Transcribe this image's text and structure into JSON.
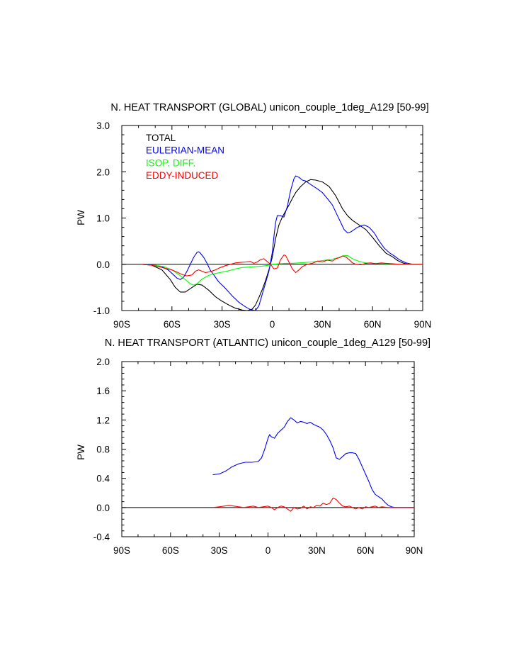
{
  "chart_data": [
    {
      "type": "line",
      "title": "N. HEAT TRANSPORT (GLOBAL) unicon_couple_1deg_A129 [50-99]",
      "xlabel": "",
      "ylabel": "PW",
      "xlim": [
        -90,
        90
      ],
      "ylim": [
        -1.0,
        3.0
      ],
      "xticks": [
        -90,
        -60,
        -30,
        0,
        30,
        60,
        90
      ],
      "xtick_labels": [
        "90S",
        "60S",
        "30S",
        "0",
        "30N",
        "60N",
        "90N"
      ],
      "yticks": [
        -1.0,
        0.0,
        1.0,
        2.0,
        3.0
      ],
      "ytick_labels": [
        "-1.0",
        "0.0",
        "1.0",
        "2.0",
        "3.0"
      ],
      "zero_line": true,
      "legend_position": "top-left",
      "series": [
        {
          "name": "TOTAL",
          "color": "#000000",
          "x": [
            -78,
            -72,
            -66,
            -61,
            -58,
            -55,
            -52,
            -48,
            -45,
            -42,
            -38,
            -34,
            -30,
            -26,
            -22,
            -18,
            -15,
            -12,
            -10,
            -8,
            -6,
            -4,
            -2,
            0,
            2,
            4,
            6,
            8,
            10,
            12,
            14,
            17,
            20,
            23,
            26,
            30,
            34,
            38,
            42,
            45,
            48,
            52,
            56,
            60,
            64,
            68,
            72,
            75,
            78,
            81,
            84,
            88,
            90
          ],
          "y": [
            0.0,
            -0.02,
            -0.12,
            -0.33,
            -0.5,
            -0.6,
            -0.6,
            -0.5,
            -0.43,
            -0.45,
            -0.56,
            -0.7,
            -0.8,
            -0.88,
            -0.95,
            -0.99,
            -1.0,
            -0.97,
            -0.88,
            -0.72,
            -0.55,
            -0.35,
            -0.12,
            0.15,
            0.55,
            0.85,
            1.02,
            1.15,
            1.28,
            1.42,
            1.55,
            1.68,
            1.78,
            1.83,
            1.82,
            1.78,
            1.68,
            1.48,
            1.2,
            1.05,
            0.95,
            0.85,
            0.75,
            0.58,
            0.4,
            0.24,
            0.16,
            0.08,
            0.03,
            0.0,
            0.0,
            0.0,
            0.0
          ]
        },
        {
          "name": "EULERIAN-MEAN",
          "color": "#0000ff",
          "x": [
            -78,
            -72,
            -66,
            -62,
            -59,
            -57,
            -55,
            -53,
            -51,
            -49,
            -47,
            -45,
            -44,
            -43,
            -41,
            -39,
            -37,
            -35,
            -32,
            -28,
            -24,
            -20,
            -16,
            -13,
            -10,
            -8,
            -6,
            -4,
            -2,
            0,
            1,
            2,
            3,
            5,
            7,
            9,
            11,
            13,
            14,
            16,
            18,
            20,
            22,
            24,
            27,
            30,
            33,
            36,
            39,
            41,
            43,
            45,
            47,
            49,
            51,
            53,
            55,
            58,
            61,
            64,
            67,
            70,
            73,
            76,
            80,
            84,
            88,
            90
          ],
          "y": [
            0.0,
            -0.01,
            -0.05,
            -0.13,
            -0.23,
            -0.3,
            -0.33,
            -0.28,
            -0.15,
            0.0,
            0.15,
            0.26,
            0.27,
            0.24,
            0.15,
            0.02,
            -0.13,
            -0.23,
            -0.38,
            -0.52,
            -0.68,
            -0.82,
            -0.92,
            -0.98,
            -1.0,
            -0.9,
            -0.65,
            -0.4,
            -0.15,
            0.25,
            0.6,
            0.9,
            1.05,
            1.05,
            1.02,
            1.25,
            1.6,
            1.85,
            1.91,
            1.88,
            1.82,
            1.8,
            1.75,
            1.7,
            1.63,
            1.55,
            1.42,
            1.28,
            1.05,
            0.9,
            0.75,
            0.68,
            0.7,
            0.75,
            0.8,
            0.83,
            0.85,
            0.8,
            0.68,
            0.5,
            0.35,
            0.25,
            0.18,
            0.1,
            0.03,
            0.0,
            0.0,
            0.0
          ]
        },
        {
          "name": "ISOP. DIFF.",
          "color": "#00ff00",
          "x": [
            -78,
            -70,
            -65,
            -60,
            -56,
            -52,
            -49,
            -47,
            -45,
            -42,
            -38,
            -34,
            -30,
            -26,
            -22,
            -18,
            -14,
            -10,
            -6,
            -2,
            0,
            4,
            8,
            12,
            16,
            20,
            24,
            28,
            32,
            36,
            40,
            43,
            45,
            48,
            52,
            56,
            60,
            64,
            68,
            72,
            76,
            80,
            84,
            88,
            90
          ],
          "y": [
            0.0,
            -0.02,
            -0.05,
            -0.12,
            -0.22,
            -0.33,
            -0.42,
            -0.45,
            -0.42,
            -0.32,
            -0.24,
            -0.2,
            -0.17,
            -0.14,
            -0.1,
            -0.07,
            -0.06,
            -0.05,
            -0.04,
            -0.02,
            0.0,
            0.01,
            0.02,
            0.02,
            0.03,
            0.04,
            0.05,
            0.07,
            0.09,
            0.11,
            0.15,
            0.19,
            0.19,
            0.12,
            0.06,
            0.03,
            0.02,
            0.02,
            0.01,
            0.01,
            0.0,
            0.0,
            0.0,
            0.0,
            0.0
          ]
        },
        {
          "name": "EDDY-INDUCED",
          "color": "#ff0000",
          "x": [
            -78,
            -72,
            -68,
            -64,
            -60,
            -57,
            -54,
            -51,
            -48,
            -46,
            -44,
            -42,
            -40,
            -37,
            -34,
            -31,
            -28,
            -25,
            -22,
            -19,
            -16,
            -13,
            -11,
            -9,
            -7,
            -5,
            -3,
            -1,
            1,
            3,
            5,
            7,
            8,
            10,
            12,
            14,
            16,
            18,
            21,
            24,
            27,
            30,
            33,
            36,
            38,
            40,
            42,
            44,
            46,
            48,
            50,
            53,
            56,
            59,
            62,
            65,
            68,
            72,
            76,
            80,
            84,
            88,
            90
          ],
          "y": [
            0.0,
            -0.02,
            -0.05,
            -0.09,
            -0.12,
            -0.17,
            -0.22,
            -0.25,
            -0.23,
            -0.15,
            -0.12,
            -0.15,
            -0.18,
            -0.16,
            -0.12,
            -0.07,
            -0.03,
            0.0,
            0.03,
            0.04,
            0.05,
            0.06,
            0.02,
            0.05,
            0.1,
            0.12,
            0.06,
            0.0,
            -0.1,
            -0.08,
            0.1,
            0.2,
            0.19,
            0.05,
            -0.1,
            -0.18,
            -0.12,
            -0.05,
            0.0,
            0.02,
            0.07,
            0.05,
            0.09,
            0.07,
            0.12,
            0.14,
            0.18,
            0.16,
            0.1,
            0.03,
            0.0,
            -0.01,
            0.02,
            0.03,
            0.01,
            0.03,
            0.02,
            0.01,
            0.0,
            0.0,
            0.0,
            0.0,
            0.0
          ]
        }
      ]
    },
    {
      "type": "line",
      "title": "N. HEAT TRANSPORT (ATLANTIC) unicon_couple_1deg_A129 [50-99]",
      "xlabel": "",
      "ylabel": "PW",
      "xlim": [
        -90,
        90
      ],
      "ylim": [
        -0.4,
        2.0
      ],
      "xticks": [
        -90,
        -60,
        -30,
        0,
        30,
        60,
        90
      ],
      "xtick_labels": [
        "90S",
        "60S",
        "30S",
        "0",
        "30N",
        "60N",
        "90N"
      ],
      "yticks": [
        -0.4,
        0.0,
        0.4,
        0.8,
        1.2,
        1.6,
        2.0
      ],
      "ytick_labels": [
        "-0.4",
        "0.0",
        "0.4",
        "0.8",
        "1.2",
        "1.6",
        "2.0"
      ],
      "zero_line": true,
      "series": [
        {
          "name": "EULERIAN-MEAN",
          "color": "#0000ff",
          "x": [
            -34,
            -30,
            -26,
            -22,
            -18,
            -14,
            -10,
            -6,
            -4,
            -2,
            0,
            1,
            2,
            4,
            6,
            8,
            10,
            12,
            14,
            16,
            18,
            20,
            22,
            24,
            26,
            28,
            30,
            32,
            34,
            36,
            38,
            40,
            42,
            44,
            46,
            48,
            50,
            52,
            54,
            56,
            58,
            60,
            62,
            64,
            66,
            68,
            70,
            72,
            74,
            76,
            78,
            80,
            82,
            84,
            88,
            90
          ],
          "y": [
            0.45,
            0.46,
            0.5,
            0.56,
            0.6,
            0.62,
            0.62,
            0.63,
            0.68,
            0.8,
            0.95,
            1.0,
            0.97,
            0.95,
            1.02,
            1.06,
            1.1,
            1.18,
            1.23,
            1.2,
            1.16,
            1.18,
            1.17,
            1.15,
            1.17,
            1.14,
            1.12,
            1.1,
            1.06,
            1.0,
            0.92,
            0.82,
            0.68,
            0.66,
            0.7,
            0.74,
            0.75,
            0.75,
            0.74,
            0.66,
            0.56,
            0.46,
            0.36,
            0.25,
            0.18,
            0.15,
            0.12,
            0.07,
            0.03,
            0.01,
            0.0,
            0.0,
            0.0,
            0.0,
            0.0,
            0.0
          ]
        },
        {
          "name": "EDDY-INDUCED",
          "color": "#ff0000",
          "x": [
            -34,
            -30,
            -27,
            -24,
            -21,
            -18,
            -15,
            -12,
            -9,
            -6,
            -3,
            0,
            2,
            4,
            6,
            8,
            10,
            12,
            14,
            16,
            18,
            20,
            22,
            24,
            26,
            28,
            30,
            32,
            34,
            36,
            38,
            40,
            42,
            44,
            46,
            48,
            50,
            52,
            54,
            56,
            58,
            60,
            62,
            64,
            66,
            68,
            70,
            74,
            78,
            82,
            86,
            90
          ],
          "y": [
            0.0,
            0.01,
            0.02,
            0.03,
            0.02,
            0.01,
            0.0,
            0.01,
            0.02,
            0.0,
            0.01,
            0.02,
            0.0,
            -0.03,
            0.0,
            0.02,
            0.01,
            -0.02,
            -0.05,
            0.0,
            -0.02,
            -0.01,
            0.02,
            -0.02,
            0.01,
            0.0,
            0.03,
            0.02,
            0.06,
            0.04,
            0.06,
            0.13,
            0.11,
            0.06,
            0.02,
            0.01,
            0.02,
            0.0,
            -0.02,
            0.0,
            -0.02,
            0.01,
            0.0,
            0.01,
            0.02,
            0.0,
            0.01,
            0.0,
            0.0,
            0.0,
            0.0,
            0.0
          ]
        }
      ]
    }
  ]
}
